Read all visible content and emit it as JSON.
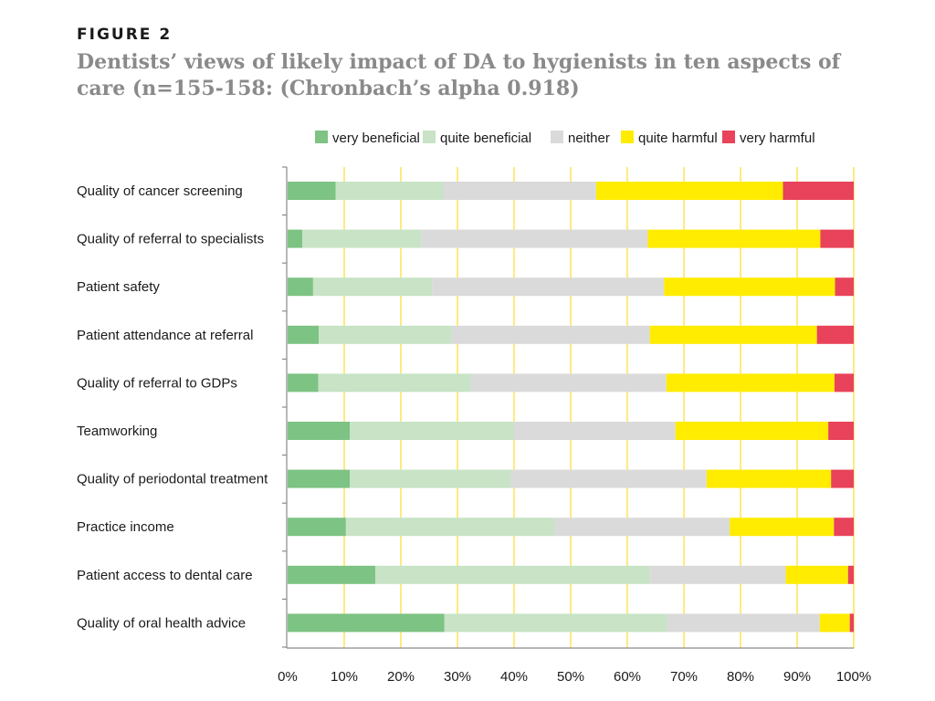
{
  "figure": {
    "label": "FIGURE 2",
    "title": "Dentists’ views of likely impact of DA to hygienists in ten aspects of care (n=155-158: (Chronbach’s alpha 0.918)"
  },
  "chart_data": {
    "type": "bar",
    "orientation": "horizontal",
    "stacked": true,
    "percent": true,
    "categories": [
      "Quality of cancer screening",
      "Quality of referral to specialists",
      "Patient safety",
      "Patient attendance at referral",
      "Quality of referral to GDPs",
      "Teamworking",
      "Quality of periodontal treatment",
      "Practice income",
      "Patient access to dental care",
      "Quality of oral health advice"
    ],
    "series": [
      {
        "name": "very beneficial",
        "color": "#7dc383",
        "values": [
          8.5,
          2.6,
          4.5,
          5.5,
          5.4,
          11,
          11,
          10.3,
          15.5,
          27.7
        ]
      },
      {
        "name": "quite beneficial",
        "color": "#c8e3c6",
        "values": [
          19,
          21,
          21,
          23.5,
          27,
          29,
          28.5,
          36.8,
          48.5,
          39.3
        ]
      },
      {
        "name": "neither",
        "color": "#dadada",
        "values": [
          27,
          40,
          41,
          35,
          34.5,
          28.5,
          34.5,
          31,
          24,
          27
        ]
      },
      {
        "name": "quite harmful",
        "color": "#ffec00",
        "values": [
          33,
          30.5,
          30.2,
          29.5,
          29.7,
          27,
          22,
          18.4,
          11,
          5.3
        ]
      },
      {
        "name": "very harmful",
        "color": "#e8435a",
        "values": [
          12.5,
          5.9,
          3.3,
          6.5,
          3.4,
          4.5,
          4,
          3.5,
          1,
          0.7
        ]
      }
    ],
    "x_ticks": [
      "0%",
      "10%",
      "20%",
      "30%",
      "40%",
      "50%",
      "60%",
      "70%",
      "80%",
      "90%",
      "100%"
    ],
    "xlim": [
      0,
      100
    ],
    "grid": "vertical",
    "legend_position": "top"
  }
}
